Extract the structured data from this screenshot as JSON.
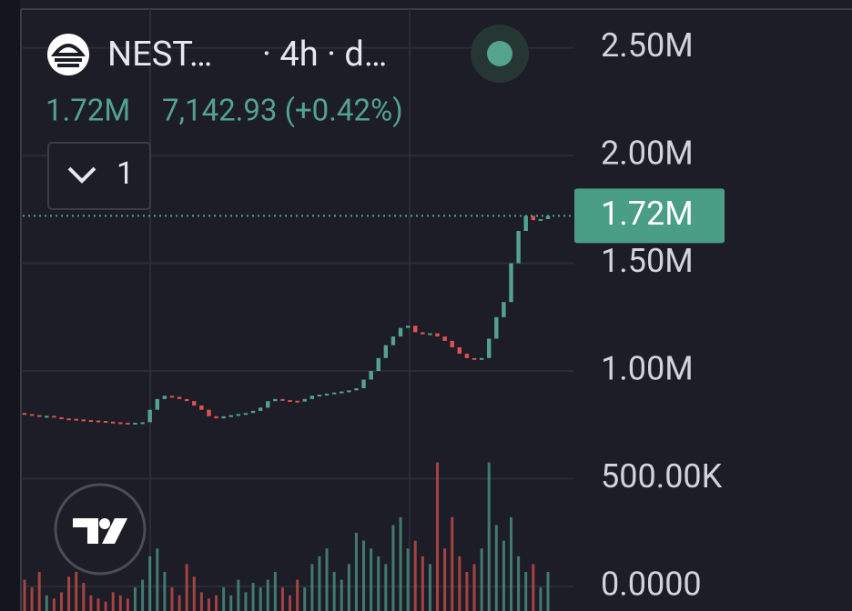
{
  "chart_data": {
    "type": "candlestick",
    "symbol": "NEST…",
    "interval": "· 4h · d…",
    "header_price": "1.72M",
    "change": "7,142.93 (+0.42%)",
    "indicator_count": "1",
    "last_price": {
      "value": 1720000,
      "label": "1.72M"
    },
    "ylim": [
      -114000,
      2722000
    ],
    "yticks": [
      {
        "value": 2500000,
        "label": "2.50M"
      },
      {
        "value": 2000000,
        "label": "2.00M"
      },
      {
        "value": 1500000,
        "label": "1.50M"
      },
      {
        "value": 1000000,
        "label": "1.00M"
      },
      {
        "value": 500000,
        "label": "500.00K"
      },
      {
        "value": 0,
        "label": "0.0000"
      }
    ],
    "grid": true,
    "up_color": "#53a38d",
    "down_color": "#e0524f",
    "open": [
      805000,
      800000,
      795000,
      790000,
      792000,
      785000,
      780000,
      778000,
      775000,
      772000,
      770000,
      768000,
      765000,
      762000,
      760000,
      758000,
      760000,
      762000,
      820000,
      870000,
      885000,
      880000,
      870000,
      860000,
      840000,
      820000,
      790000,
      780000,
      790000,
      795000,
      800000,
      805000,
      815000,
      830000,
      860000,
      870000,
      865000,
      862000,
      858000,
      870000,
      885000,
      890000,
      895000,
      900000,
      905000,
      910000,
      920000,
      960000,
      1000000,
      1060000,
      1120000,
      1160000,
      1200000,
      1210000,
      1180000,
      1170000,
      1175000,
      1160000,
      1140000,
      1110000,
      1080000,
      1060000,
      1055000,
      1060000,
      1150000,
      1250000,
      1320000,
      1500000,
      1650000,
      1720000,
      1700000,
      1705000
    ],
    "close": [
      800000,
      795000,
      790000,
      792000,
      785000,
      780000,
      778000,
      775000,
      772000,
      770000,
      768000,
      765000,
      762000,
      760000,
      758000,
      760000,
      762000,
      820000,
      870000,
      885000,
      880000,
      870000,
      860000,
      840000,
      820000,
      790000,
      780000,
      790000,
      795000,
      800000,
      805000,
      815000,
      830000,
      860000,
      870000,
      865000,
      862000,
      858000,
      870000,
      885000,
      890000,
      895000,
      900000,
      905000,
      910000,
      920000,
      960000,
      1000000,
      1060000,
      1120000,
      1160000,
      1200000,
      1210000,
      1180000,
      1170000,
      1175000,
      1160000,
      1140000,
      1110000,
      1080000,
      1060000,
      1055000,
      1060000,
      1150000,
      1250000,
      1320000,
      1500000,
      1650000,
      1720000,
      1700000,
      1705000,
      1720000
    ],
    "volume": {
      "axis": "y2",
      "values": [
        20,
        15,
        25,
        10,
        8,
        12,
        22,
        25,
        18,
        10,
        8,
        6,
        12,
        10,
        8,
        15,
        20,
        35,
        40,
        25,
        15,
        10,
        30,
        22,
        12,
        8,
        10,
        15,
        10,
        20,
        12,
        18,
        15,
        20,
        25,
        15,
        10,
        20,
        15,
        30,
        35,
        40,
        25,
        20,
        30,
        50,
        45,
        40,
        35,
        30,
        55,
        60,
        40,
        45,
        35,
        30,
        95,
        40,
        60,
        35,
        25,
        30,
        40,
        95,
        55,
        45,
        60,
        35,
        25,
        30,
        15,
        25
      ]
    },
    "y2lim": [
      0,
      100
    ]
  }
}
